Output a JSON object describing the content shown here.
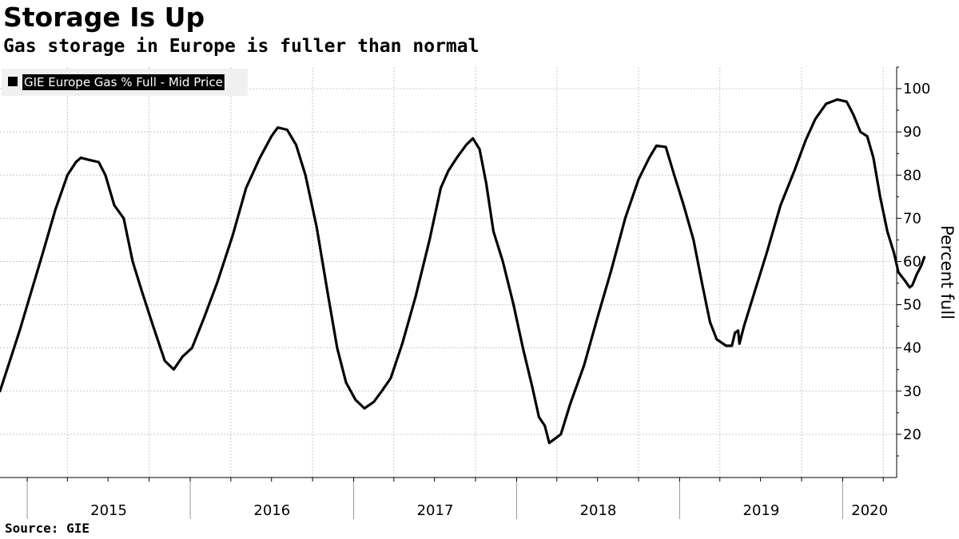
{
  "header": {
    "title": "Storage Is Up",
    "subtitle": "Gas storage in Europe is fuller than normal"
  },
  "footer": {
    "source": "Source: GIE"
  },
  "chart_data": {
    "type": "line",
    "title": "Storage Is Up",
    "subtitle": "Gas storage in Europe is fuller than normal",
    "xlabel": "",
    "ylabel": "Percent full",
    "ylim": [
      10,
      105
    ],
    "xlim": [
      "2014-11-01",
      "2020-05-01"
    ],
    "yticks": [
      20,
      30,
      40,
      50,
      60,
      70,
      80,
      90,
      100
    ],
    "xtick_labels": [
      "2015",
      "2016",
      "2017",
      "2018",
      "2019",
      "2020"
    ],
    "grid": true,
    "legend_position": "top-left",
    "series": [
      {
        "name": "GIE Europe Gas % Full - Mid Price",
        "color": "#000000",
        "points": [
          [
            "2014-11-01",
            30.0
          ],
          [
            "2014-11-20",
            36.0
          ],
          [
            "2014-12-15",
            44.0
          ],
          [
            "2015-01-10",
            53.0
          ],
          [
            "2015-02-05",
            62.0
          ],
          [
            "2015-03-05",
            72.0
          ],
          [
            "2015-04-01",
            80.0
          ],
          [
            "2015-04-20",
            83.0
          ],
          [
            "2015-05-01",
            84.0
          ],
          [
            "2015-05-20",
            83.5
          ],
          [
            "2015-06-10",
            83.0
          ],
          [
            "2015-06-25",
            80.0
          ],
          [
            "2015-07-15",
            73.0
          ],
          [
            "2015-08-05",
            70.0
          ],
          [
            "2015-08-25",
            60.0
          ],
          [
            "2015-09-15",
            53.0
          ],
          [
            "2015-10-10",
            45.0
          ],
          [
            "2015-11-05",
            37.0
          ],
          [
            "2015-11-25",
            35.0
          ],
          [
            "2015-12-15",
            38.0
          ],
          [
            "2016-01-05",
            40.0
          ],
          [
            "2016-02-01",
            47.0
          ],
          [
            "2016-03-01",
            55.0
          ],
          [
            "2016-04-05",
            66.0
          ],
          [
            "2016-05-05",
            77.0
          ],
          [
            "2016-06-05",
            84.0
          ],
          [
            "2016-07-01",
            89.0
          ],
          [
            "2016-07-15",
            91.0
          ],
          [
            "2016-08-05",
            90.5
          ],
          [
            "2016-08-25",
            87.0
          ],
          [
            "2016-09-15",
            80.0
          ],
          [
            "2016-10-10",
            68.0
          ],
          [
            "2016-11-05",
            52.0
          ],
          [
            "2016-11-25",
            40.0
          ],
          [
            "2016-12-15",
            32.0
          ],
          [
            "2017-01-05",
            28.0
          ],
          [
            "2017-01-25",
            26.0
          ],
          [
            "2017-02-15",
            27.5
          ],
          [
            "2017-03-05",
            30.0
          ],
          [
            "2017-03-25",
            33.0
          ],
          [
            "2017-04-20",
            41.0
          ],
          [
            "2017-05-20",
            52.0
          ],
          [
            "2017-06-20",
            65.0
          ],
          [
            "2017-07-15",
            77.0
          ],
          [
            "2017-08-01",
            81.0
          ],
          [
            "2017-08-20",
            84.0
          ],
          [
            "2017-09-10",
            87.0
          ],
          [
            "2017-09-25",
            88.5
          ],
          [
            "2017-10-10",
            86.0
          ],
          [
            "2017-10-25",
            78.0
          ],
          [
            "2017-11-10",
            67.0
          ],
          [
            "2017-12-01",
            60.0
          ],
          [
            "2017-12-25",
            50.0
          ],
          [
            "2018-01-15",
            40.0
          ],
          [
            "2018-02-05",
            31.0
          ],
          [
            "2018-02-20",
            24.0
          ],
          [
            "2018-03-05",
            22.0
          ],
          [
            "2018-03-15",
            18.0
          ],
          [
            "2018-03-28",
            19.0
          ],
          [
            "2018-04-10",
            20.0
          ],
          [
            "2018-05-01",
            27.0
          ],
          [
            "2018-06-01",
            36.0
          ],
          [
            "2018-07-01",
            47.0
          ],
          [
            "2018-08-01",
            58.0
          ],
          [
            "2018-09-01",
            70.0
          ],
          [
            "2018-10-01",
            79.0
          ],
          [
            "2018-10-25",
            84.0
          ],
          [
            "2018-11-10",
            86.8
          ],
          [
            "2018-12-01",
            86.5
          ],
          [
            "2018-12-20",
            80.0
          ],
          [
            "2019-01-10",
            73.0
          ],
          [
            "2019-02-01",
            65.0
          ],
          [
            "2019-02-20",
            55.0
          ],
          [
            "2019-03-10",
            46.0
          ],
          [
            "2019-03-25",
            42.0
          ],
          [
            "2019-04-15",
            40.5
          ],
          [
            "2019-04-28",
            40.5
          ],
          [
            "2019-05-05",
            43.5
          ],
          [
            "2019-05-12",
            44.0
          ],
          [
            "2019-05-15",
            41.0
          ],
          [
            "2019-05-25",
            45.0
          ],
          [
            "2019-06-15",
            52.0
          ],
          [
            "2019-07-15",
            62.0
          ],
          [
            "2019-08-15",
            73.0
          ],
          [
            "2019-09-15",
            81.0
          ],
          [
            "2019-10-10",
            88.0
          ],
          [
            "2019-11-01",
            93.0
          ],
          [
            "2019-11-25",
            96.5
          ],
          [
            "2019-12-20",
            97.5
          ],
          [
            "2020-01-10",
            97.0
          ],
          [
            "2020-01-25",
            94.0
          ],
          [
            "2020-02-10",
            90.0
          ],
          [
            "2020-02-25",
            89.0
          ],
          [
            "2020-03-10",
            84.0
          ],
          [
            "2020-03-25",
            75.0
          ],
          [
            "2020-04-10",
            67.0
          ],
          [
            "2020-04-25",
            62.0
          ],
          [
            "2020-05-05",
            57.5
          ],
          [
            "2020-05-20",
            55.5
          ],
          [
            "2020-05-30",
            54.0
          ],
          [
            "2020-06-05",
            54.5
          ],
          [
            "2020-06-15",
            57.0
          ],
          [
            "2020-06-25",
            59.0
          ],
          [
            "2020-07-02",
            61.0
          ]
        ]
      }
    ]
  }
}
